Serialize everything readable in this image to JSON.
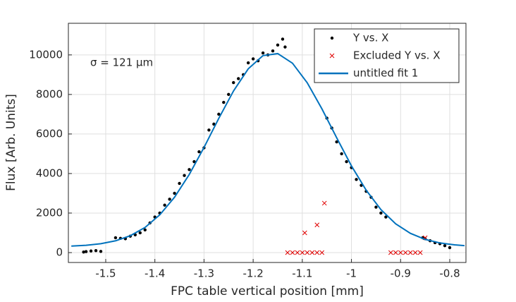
{
  "chart_data": {
    "type": "scatter",
    "xlabel": "FPC table vertical position [mm]",
    "ylabel": "Flux [Arb. Units]",
    "annotation": "σ = 121 μm",
    "xlim": [
      -1.576,
      -0.767
    ],
    "ylim": [
      -500,
      11600
    ],
    "xticks": [
      -1.5,
      -1.4,
      -1.3,
      -1.2,
      -1.1,
      -1,
      -0.9,
      -0.8
    ],
    "yticks": [
      0,
      2000,
      4000,
      6000,
      8000,
      10000
    ],
    "grid": true,
    "legend": "upper right",
    "series": [
      {
        "name": "Y vs. X",
        "color": "#000000",
        "marker": "dot",
        "x": [
          -1.545,
          -1.54,
          -1.53,
          -1.52,
          -1.51,
          -1.48,
          -1.47,
          -1.46,
          -1.45,
          -1.44,
          -1.43,
          -1.42,
          -1.41,
          -1.4,
          -1.39,
          -1.38,
          -1.37,
          -1.36,
          -1.35,
          -1.34,
          -1.33,
          -1.32,
          -1.31,
          -1.3,
          -1.29,
          -1.28,
          -1.27,
          -1.26,
          -1.25,
          -1.24,
          -1.23,
          -1.22,
          -1.21,
          -1.2,
          -1.19,
          -1.18,
          -1.17,
          -1.16,
          -1.15,
          -1.14,
          -1.135,
          -1.05,
          -1.04,
          -1.03,
          -1.02,
          -1.01,
          -1,
          -0.99,
          -0.98,
          -0.97,
          -0.96,
          -0.95,
          -0.94,
          -0.93,
          -0.855,
          -0.85,
          -0.84,
          -0.83,
          -0.82,
          -0.81,
          -0.8
        ],
        "values": [
          30,
          50,
          80,
          100,
          60,
          750,
          720,
          700,
          830,
          900,
          1000,
          1150,
          1500,
          1800,
          2000,
          2400,
          2700,
          3000,
          3500,
          3900,
          4200,
          4600,
          5100,
          5300,
          6200,
          6500,
          7000,
          7600,
          8000,
          8600,
          8800,
          9000,
          9600,
          9800,
          9700,
          10100,
          10000,
          10200,
          10500,
          10800,
          10400,
          6800,
          6300,
          5600,
          5000,
          4600,
          4300,
          3700,
          3400,
          3100,
          2800,
          2300,
          2000,
          1800,
          750,
          700,
          600,
          500,
          450,
          350,
          250
        ]
      },
      {
        "name": "Excluded Y vs. X",
        "color": "#e00000",
        "marker": "x",
        "x": [
          -1.13,
          -1.12,
          -1.11,
          -1.1,
          -1.09,
          -1.08,
          -1.07,
          -1.06,
          -1.095,
          -1.07,
          -1.055,
          -0.92,
          -0.91,
          -0.9,
          -0.89,
          -0.88,
          -0.87,
          -0.86,
          -0.85
        ],
        "values": [
          0,
          0,
          0,
          0,
          0,
          0,
          0,
          0,
          1000,
          1400,
          2500,
          0,
          0,
          0,
          0,
          0,
          0,
          0,
          750
        ]
      },
      {
        "name": "untitled fit 1",
        "color": "#0072bd",
        "marker": "line",
        "x": [
          -1.57,
          -1.54,
          -1.51,
          -1.48,
          -1.45,
          -1.42,
          -1.39,
          -1.36,
          -1.33,
          -1.3,
          -1.27,
          -1.24,
          -1.21,
          -1.18,
          -1.15,
          -1.12,
          -1.09,
          -1.06,
          -1.03,
          -1,
          -0.97,
          -0.94,
          -0.91,
          -0.88,
          -0.85,
          -0.82,
          -0.79,
          -0.77
        ],
        "values": [
          331,
          371,
          450,
          596,
          855,
          1273,
          1910,
          2800,
          3953,
          5320,
          6788,
          8175,
          9296,
          9966,
          10067,
          9581,
          8593,
          7268,
          5808,
          4387,
          3155,
          2174,
          1456,
          974,
          668,
          489,
          391,
          354
        ]
      }
    ]
  }
}
